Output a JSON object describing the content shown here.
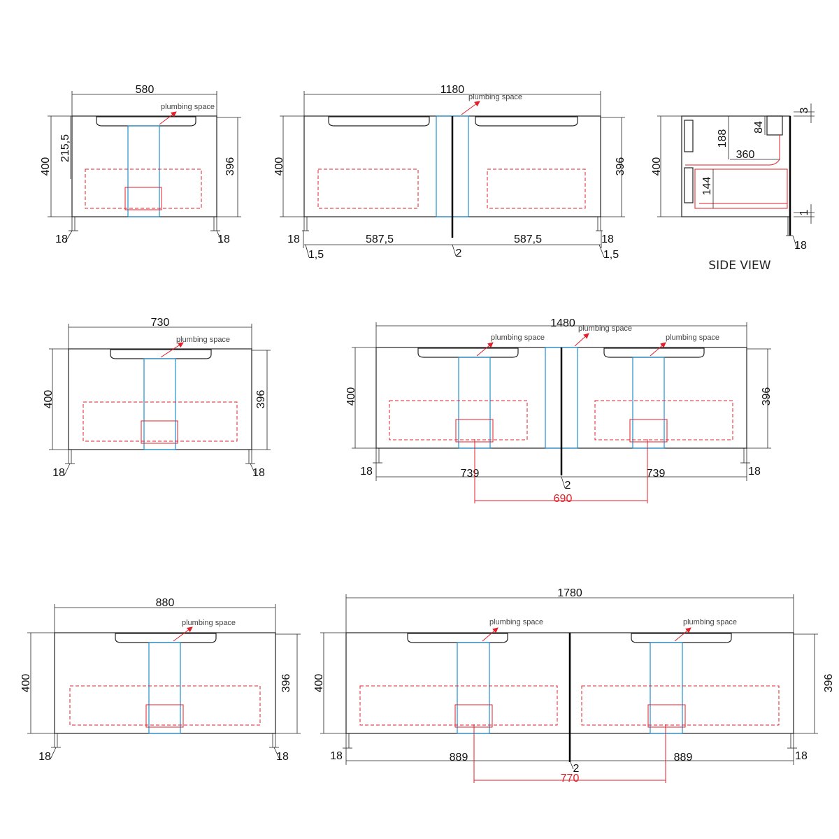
{
  "labels": {
    "plumbing": "plumbing space",
    "side_view": "SIDE VIEW"
  },
  "units": [
    {
      "id": "580",
      "width": "580",
      "height_left": "400",
      "height_right": "396",
      "extra_left": "215,5",
      "leg_left": "18",
      "leg_right": "18"
    },
    {
      "id": "1180",
      "width": "1180",
      "height_left": "400",
      "height_right": "396",
      "leg_left": "18",
      "leg_right": "18",
      "bottom": [
        "587,5",
        "2",
        "587,5"
      ],
      "gap_left": "1,5",
      "gap_right": "1,5"
    },
    {
      "id": "side",
      "height": "400",
      "d188": "188",
      "d360": "360",
      "d84": "84",
      "d144": "144",
      "d3": "3",
      "d1": "1",
      "leg": "18"
    },
    {
      "id": "730",
      "width": "730",
      "height_left": "400",
      "height_right": "396",
      "leg_left": "18",
      "leg_right": "18"
    },
    {
      "id": "1480",
      "width": "1480",
      "height_left": "400",
      "height_right": "396",
      "leg_left": "18",
      "leg_right": "18",
      "bottom": [
        "739",
        "2",
        "739"
      ],
      "red_span": "690"
    },
    {
      "id": "880",
      "width": "880",
      "height_left": "400",
      "height_right": "396",
      "leg_left": "18",
      "leg_right": "18"
    },
    {
      "id": "1780",
      "width": "1780",
      "height_left": "400",
      "height_right": "396",
      "leg_left": "18",
      "leg_right": "18",
      "bottom": [
        "889",
        "2",
        "889"
      ],
      "red_span": "770"
    }
  ],
  "colors": {
    "accent_red": "#e0202a",
    "accent_blue": "#1f8fd0",
    "line": "#222222"
  }
}
